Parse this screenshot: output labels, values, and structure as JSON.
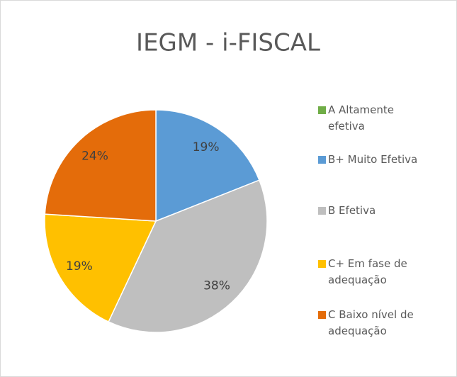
{
  "chart_data": {
    "type": "pie",
    "title": "IEGM - i-FISCAL",
    "categories": [
      "A Altamente efetiva",
      "B+ Muito Efetiva",
      "B Efetiva",
      "C+ Em fase de adequação",
      "C Baixo nível de adequação"
    ],
    "values": [
      0,
      19,
      38,
      19,
      24
    ],
    "value_labels": [
      null,
      "19%",
      "38%",
      "19%",
      "24%"
    ],
    "colors": [
      "#70ad47",
      "#5b9bd5",
      "#bfbfbf",
      "#ffc000",
      "#e46c0a"
    ],
    "legend": "right"
  }
}
